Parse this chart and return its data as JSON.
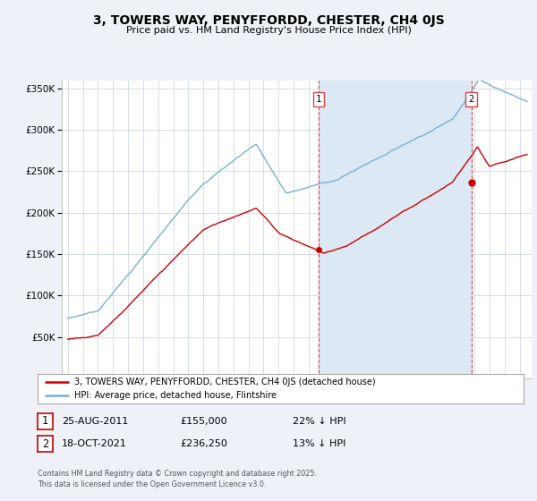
{
  "title": "3, TOWERS WAY, PENYFFORDD, CHESTER, CH4 0JS",
  "subtitle": "Price paid vs. HM Land Registry's House Price Index (HPI)",
  "legend_line1": "3, TOWERS WAY, PENYFFORDD, CHESTER, CH4 0JS (detached house)",
  "legend_line2": "HPI: Average price, detached house, Flintshire",
  "annotation1_date": "25-AUG-2011",
  "annotation1_price": "£155,000",
  "annotation1_hpi": "22% ↓ HPI",
  "annotation2_date": "18-OCT-2021",
  "annotation2_price": "£236,250",
  "annotation2_hpi": "13% ↓ HPI",
  "footnote": "Contains HM Land Registry data © Crown copyright and database right 2025.\nThis data is licensed under the Open Government Licence v3.0.",
  "sale1_year": 2011.65,
  "sale1_value": 155000,
  "sale2_year": 2021.8,
  "sale2_value": 236250,
  "ylim": [
    0,
    360000
  ],
  "xlim_start": 1994.6,
  "xlim_end": 2025.8,
  "red_color": "#cc0000",
  "blue_color": "#7ab0d4",
  "background_color": "#eef2f8",
  "plot_bg_color": "#ffffff",
  "grid_color": "#c8d0dc",
  "vline_color": "#dd4444",
  "shade_color": "#dce8f4"
}
